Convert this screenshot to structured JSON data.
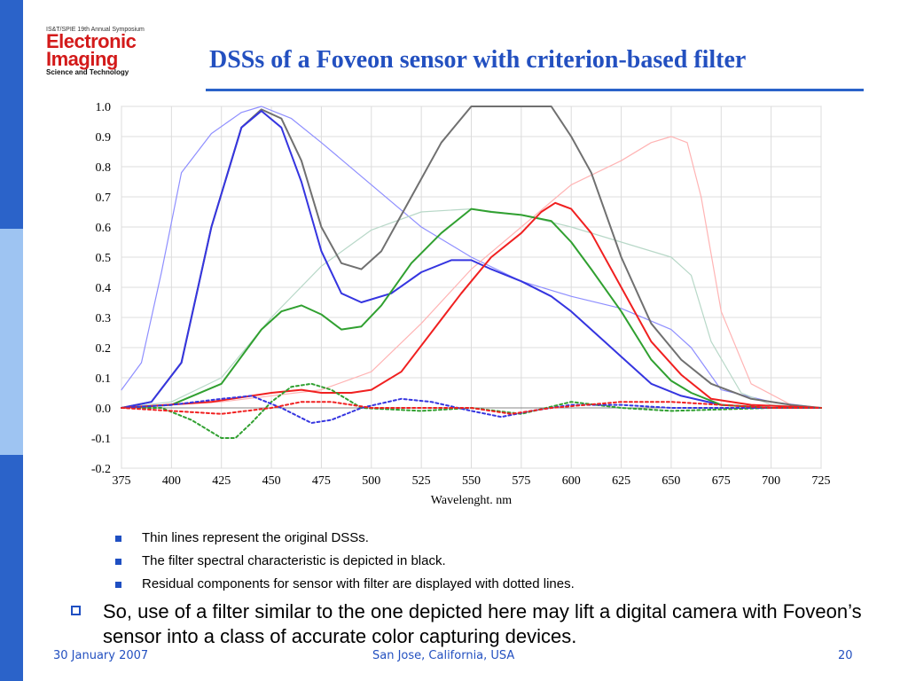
{
  "logo": {
    "top_line": "IS&T/SPIE 19th Annual Symposium",
    "line1": "Electronic",
    "line2": "Imaging",
    "line3": "Science and Technology"
  },
  "slide": {
    "title": "DSSs of a Foveon sensor with criterion-based filter",
    "bullets": [
      "Thin lines represent the original DSSs.",
      "The filter spectral characteristic is depicted in black.",
      "Residual components for sensor with filter are displayed with dotted lines."
    ],
    "main_point": "So, use of a filter similar to the one depicted here may lift a digital camera with Foveon’s sensor into a class of accurate color capturing devices."
  },
  "footer": {
    "date": "30 January 2007",
    "location": "San Jose, California, USA",
    "page": "20"
  },
  "colors": {
    "accent": "#2b63c9",
    "title": "#2350c0",
    "logo_red": "#d31a1a"
  },
  "chart_data": {
    "type": "line",
    "xlabel": "Wavelenght. nm",
    "ylabel": "",
    "xlim": [
      375,
      725
    ],
    "ylim": [
      -0.2,
      1.0
    ],
    "xticks": [
      "375",
      "400",
      "425",
      "450",
      "475",
      "500",
      "525",
      "550",
      "575",
      "600",
      "625",
      "650",
      "675",
      "700",
      "725"
    ],
    "yticks": [
      "1.0",
      "0.9",
      "0.8",
      "0.7",
      "0.6",
      "0.5",
      "0.4",
      "0.3",
      "0.2",
      "0.1",
      "0.0",
      "-0.1",
      "-0.2"
    ],
    "grid": true,
    "series": [
      {
        "color": "#8f8fff",
        "style": "thin",
        "points": [
          [
            375,
            0.06
          ],
          [
            385,
            0.15
          ],
          [
            395,
            0.45
          ],
          [
            405,
            0.78
          ],
          [
            420,
            0.91
          ],
          [
            435,
            0.98
          ],
          [
            445,
            1.0
          ],
          [
            460,
            0.96
          ],
          [
            475,
            0.88
          ],
          [
            500,
            0.74
          ],
          [
            525,
            0.6
          ],
          [
            550,
            0.5
          ],
          [
            575,
            0.42
          ],
          [
            600,
            0.37
          ],
          [
            625,
            0.33
          ],
          [
            650,
            0.26
          ],
          [
            660,
            0.2
          ],
          [
            675,
            0.06
          ],
          [
            700,
            0.02
          ],
          [
            725,
            0.0
          ]
        ]
      },
      {
        "color": "#b8d8c8",
        "style": "thin",
        "points": [
          [
            375,
            0.0
          ],
          [
            400,
            0.02
          ],
          [
            425,
            0.1
          ],
          [
            450,
            0.3
          ],
          [
            475,
            0.47
          ],
          [
            500,
            0.59
          ],
          [
            525,
            0.65
          ],
          [
            550,
            0.66
          ],
          [
            575,
            0.64
          ],
          [
            600,
            0.6
          ],
          [
            625,
            0.55
          ],
          [
            650,
            0.5
          ],
          [
            660,
            0.44
          ],
          [
            670,
            0.22
          ],
          [
            685,
            0.05
          ],
          [
            700,
            0.01
          ],
          [
            725,
            0.0
          ]
        ]
      },
      {
        "color": "#ffb4b4",
        "style": "thin",
        "points": [
          [
            375,
            0.0
          ],
          [
            425,
            0.02
          ],
          [
            475,
            0.06
          ],
          [
            500,
            0.12
          ],
          [
            525,
            0.28
          ],
          [
            550,
            0.46
          ],
          [
            575,
            0.6
          ],
          [
            600,
            0.74
          ],
          [
            625,
            0.82
          ],
          [
            640,
            0.88
          ],
          [
            650,
            0.9
          ],
          [
            658,
            0.88
          ],
          [
            665,
            0.7
          ],
          [
            675,
            0.32
          ],
          [
            690,
            0.08
          ],
          [
            710,
            0.01
          ],
          [
            725,
            0.0
          ]
        ]
      },
      {
        "color": "#707070",
        "style": "solid",
        "points": [
          [
            375,
            0.0
          ],
          [
            390,
            0.02
          ],
          [
            405,
            0.15
          ],
          [
            420,
            0.6
          ],
          [
            435,
            0.93
          ],
          [
            445,
            0.99
          ],
          [
            455,
            0.96
          ],
          [
            465,
            0.82
          ],
          [
            475,
            0.6
          ],
          [
            485,
            0.48
          ],
          [
            495,
            0.46
          ],
          [
            505,
            0.52
          ],
          [
            520,
            0.7
          ],
          [
            535,
            0.88
          ],
          [
            550,
            1.0
          ],
          [
            575,
            1.0
          ],
          [
            590,
            1.0
          ],
          [
            600,
            0.9
          ],
          [
            610,
            0.78
          ],
          [
            625,
            0.5
          ],
          [
            640,
            0.28
          ],
          [
            655,
            0.16
          ],
          [
            670,
            0.08
          ],
          [
            690,
            0.03
          ],
          [
            710,
            0.01
          ],
          [
            725,
            0.0
          ]
        ]
      },
      {
        "color": "#3535e0",
        "style": "solid",
        "points": [
          [
            375,
            0.0
          ],
          [
            390,
            0.02
          ],
          [
            405,
            0.15
          ],
          [
            420,
            0.6
          ],
          [
            435,
            0.93
          ],
          [
            445,
            0.985
          ],
          [
            455,
            0.93
          ],
          [
            465,
            0.75
          ],
          [
            475,
            0.52
          ],
          [
            485,
            0.38
          ],
          [
            495,
            0.35
          ],
          [
            510,
            0.38
          ],
          [
            525,
            0.45
          ],
          [
            540,
            0.49
          ],
          [
            550,
            0.49
          ],
          [
            560,
            0.46
          ],
          [
            575,
            0.42
          ],
          [
            590,
            0.37
          ],
          [
            600,
            0.32
          ],
          [
            615,
            0.23
          ],
          [
            625,
            0.17
          ],
          [
            640,
            0.08
          ],
          [
            655,
            0.04
          ],
          [
            675,
            0.01
          ],
          [
            700,
            0.0
          ],
          [
            725,
            0.0
          ]
        ]
      },
      {
        "color": "#30a030",
        "style": "solid",
        "points": [
          [
            375,
            0.0
          ],
          [
            400,
            0.01
          ],
          [
            425,
            0.08
          ],
          [
            445,
            0.26
          ],
          [
            455,
            0.32
          ],
          [
            465,
            0.34
          ],
          [
            475,
            0.31
          ],
          [
            485,
            0.26
          ],
          [
            495,
            0.27
          ],
          [
            505,
            0.34
          ],
          [
            520,
            0.48
          ],
          [
            535,
            0.58
          ],
          [
            550,
            0.66
          ],
          [
            560,
            0.65
          ],
          [
            575,
            0.64
          ],
          [
            590,
            0.62
          ],
          [
            600,
            0.55
          ],
          [
            610,
            0.46
          ],
          [
            625,
            0.32
          ],
          [
            640,
            0.16
          ],
          [
            650,
            0.09
          ],
          [
            660,
            0.05
          ],
          [
            675,
            0.01
          ],
          [
            700,
            0.0
          ],
          [
            725,
            0.0
          ]
        ]
      },
      {
        "color": "#f02020",
        "style": "solid",
        "points": [
          [
            375,
            0.0
          ],
          [
            420,
            0.02
          ],
          [
            450,
            0.05
          ],
          [
            465,
            0.06
          ],
          [
            475,
            0.05
          ],
          [
            490,
            0.05
          ],
          [
            500,
            0.06
          ],
          [
            515,
            0.12
          ],
          [
            530,
            0.25
          ],
          [
            545,
            0.38
          ],
          [
            560,
            0.5
          ],
          [
            575,
            0.58
          ],
          [
            585,
            0.65
          ],
          [
            592,
            0.68
          ],
          [
            600,
            0.66
          ],
          [
            610,
            0.58
          ],
          [
            625,
            0.4
          ],
          [
            640,
            0.22
          ],
          [
            655,
            0.11
          ],
          [
            670,
            0.03
          ],
          [
            690,
            0.01
          ],
          [
            725,
            0.0
          ]
        ]
      },
      {
        "color": "#30a030",
        "style": "dotted",
        "points": [
          [
            375,
            0.0
          ],
          [
            395,
            0.0
          ],
          [
            410,
            -0.04
          ],
          [
            425,
            -0.1
          ],
          [
            432,
            -0.1
          ],
          [
            440,
            -0.05
          ],
          [
            450,
            0.02
          ],
          [
            460,
            0.07
          ],
          [
            470,
            0.08
          ],
          [
            480,
            0.06
          ],
          [
            495,
            0.0
          ],
          [
            525,
            -0.01
          ],
          [
            550,
            0.0
          ],
          [
            575,
            -0.02
          ],
          [
            600,
            0.02
          ],
          [
            625,
            0.0
          ],
          [
            650,
            -0.01
          ],
          [
            700,
            0.0
          ],
          [
            725,
            0.0
          ]
        ]
      },
      {
        "color": "#3535e0",
        "style": "dotted",
        "points": [
          [
            375,
            0.0
          ],
          [
            400,
            0.01
          ],
          [
            425,
            0.03
          ],
          [
            440,
            0.04
          ],
          [
            455,
            0.0
          ],
          [
            470,
            -0.05
          ],
          [
            480,
            -0.04
          ],
          [
            495,
            0.0
          ],
          [
            515,
            0.03
          ],
          [
            530,
            0.02
          ],
          [
            550,
            -0.01
          ],
          [
            565,
            -0.03
          ],
          [
            580,
            -0.01
          ],
          [
            600,
            0.01
          ],
          [
            625,
            0.01
          ],
          [
            650,
            0.0
          ],
          [
            700,
            0.0
          ],
          [
            725,
            0.0
          ]
        ]
      },
      {
        "color": "#f02020",
        "style": "dotted",
        "points": [
          [
            375,
            0.0
          ],
          [
            400,
            -0.01
          ],
          [
            425,
            -0.02
          ],
          [
            450,
            0.0
          ],
          [
            465,
            0.02
          ],
          [
            480,
            0.02
          ],
          [
            500,
            0.0
          ],
          [
            525,
            0.0
          ],
          [
            550,
            0.0
          ],
          [
            570,
            -0.02
          ],
          [
            590,
            0.0
          ],
          [
            625,
            0.02
          ],
          [
            650,
            0.02
          ],
          [
            675,
            0.01
          ],
          [
            700,
            0.0
          ],
          [
            725,
            0.0
          ]
        ]
      }
    ]
  }
}
